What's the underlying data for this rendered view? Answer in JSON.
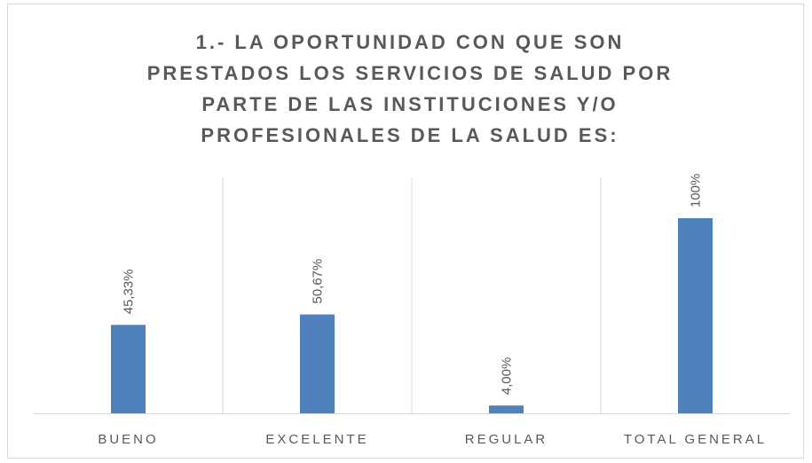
{
  "chart_data": {
    "type": "bar",
    "title": [
      "1.- LA OPORTUNIDAD CON QUE SON",
      "PRESTADOS LOS SERVICIOS DE SALUD POR",
      "PARTE DE LAS INSTITUCIONES Y/O",
      "PROFESIONALES DE LA SALUD ES:"
    ],
    "categories": [
      "BUENO",
      "EXCELENTE",
      "REGULAR",
      "TOTAL GENERAL"
    ],
    "values": [
      45.33,
      50.67,
      4,
      100
    ],
    "value_labels": [
      "45,33%",
      "50,67%",
      "4,00%",
      "100%"
    ],
    "color": "#4f81bd"
  }
}
